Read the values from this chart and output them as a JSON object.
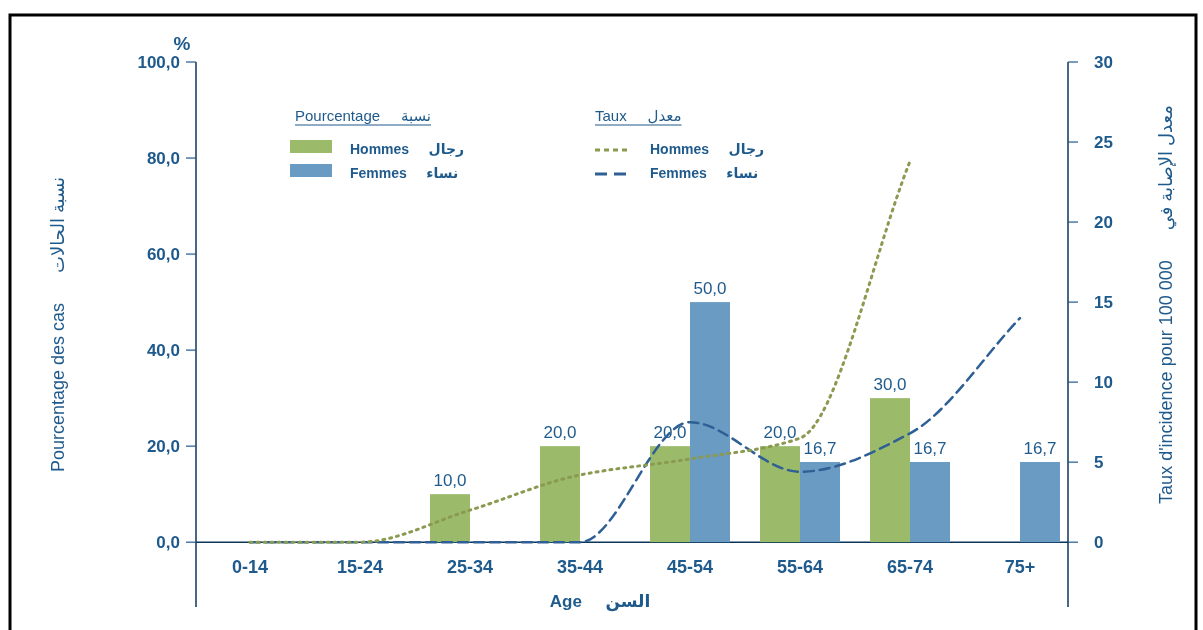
{
  "chart_data": {
    "type": "bar",
    "categories": [
      "0-14",
      "15-24",
      "25-34",
      "35-44",
      "45-54",
      "55-64",
      "65-74",
      "75+"
    ],
    "xlabel": "Age     السن",
    "ylabel": "Pourcentage des cas      نسبة الحالات",
    "y2label": "Taux d'incidence pour 100 000      معدل الإصابة في",
    "annotations": [
      "%",
      "Pourcentage     نسبة",
      "Taux     معدل"
    ],
    "ylim": [
      -13.5,
      100
    ],
    "yticks": [
      {
        "value": 0,
        "label": "0,0"
      },
      {
        "value": 20,
        "label": "20,0"
      },
      {
        "value": 40,
        "label": "40,0"
      },
      {
        "value": 60,
        "label": "60,0"
      },
      {
        "value": 80,
        "label": "80,0"
      },
      {
        "value": 100,
        "label": "100,0"
      }
    ],
    "y2lim": [
      -4.05,
      30
    ],
    "y2ticks": [
      0,
      5,
      10,
      15,
      20,
      25,
      30
    ],
    "legend": "top",
    "series": [
      {
        "name": "Hommes     رجال",
        "type": "bar",
        "color": "#9bbb6a",
        "values": [
          null,
          null,
          10,
          20,
          20,
          20,
          30,
          null
        ],
        "value_labels": [
          null,
          null,
          "10,0",
          "20,0",
          "20,0",
          "20,0",
          "30,0",
          null
        ]
      },
      {
        "name": "Femmes     نساء",
        "type": "bar",
        "color": "#6a9bc3",
        "values": [
          null,
          null,
          null,
          null,
          50,
          16.7,
          16.7,
          16.7
        ],
        "value_labels": [
          null,
          null,
          null,
          null,
          "50,0",
          "16,7",
          "16,7",
          "16,7"
        ]
      },
      {
        "name": "Hommes     رجال",
        "type": "line",
        "axis": "y2",
        "line_style": "dotted",
        "color": "#8a9a50",
        "values": [
          0,
          0,
          2.0,
          4.2,
          5.2,
          6.5,
          23.8,
          null
        ]
      },
      {
        "name": "Femmes     نساء",
        "type": "line",
        "axis": "y2",
        "line_style": "dashed",
        "color": "#2e5f95",
        "values": [
          0,
          0,
          0,
          0,
          7.5,
          4.4,
          6.8,
          14.0
        ]
      }
    ]
  }
}
